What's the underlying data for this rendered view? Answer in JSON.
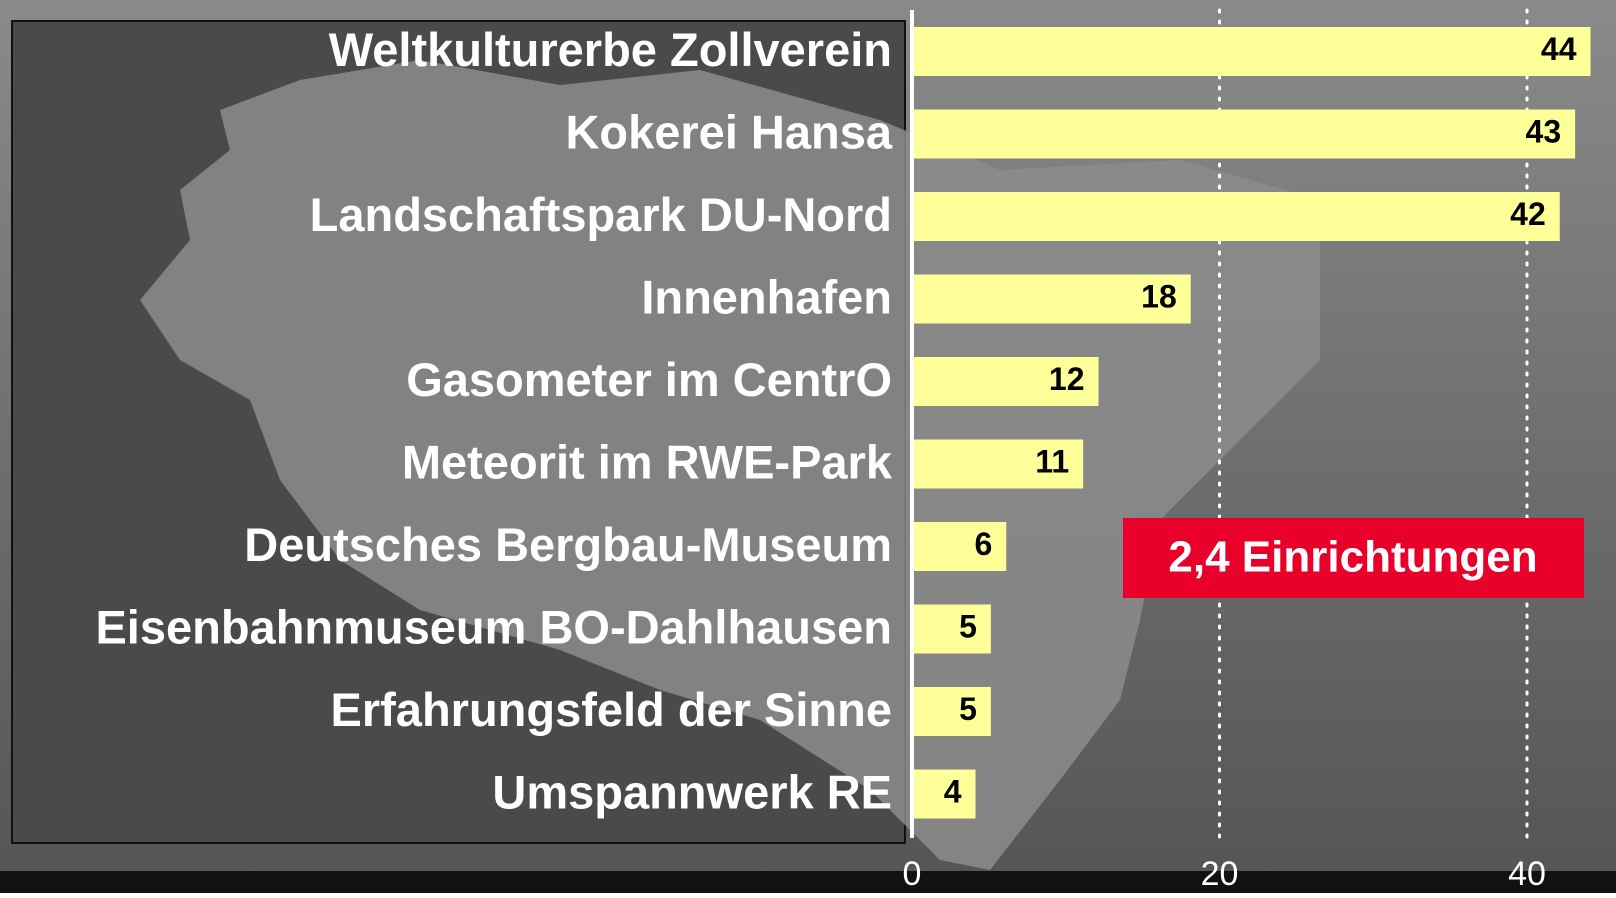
{
  "chart_data": {
    "type": "bar",
    "orientation": "horizontal",
    "categories": [
      "Weltkulturerbe Zollverein",
      "Kokerei Hansa",
      "Landschaftspark DU-Nord",
      "Innenhafen",
      "Gasometer im CentrO",
      "Meteorit im RWE-Park",
      "Deutsches Bergbau-Museum",
      "Eisenbahnmuseum BO-Dahlhausen",
      "Erfahrungsfeld der Sinne",
      "Umspannwerk RE"
    ],
    "values": [
      44,
      43,
      42,
      18,
      12,
      11,
      6,
      5,
      5,
      4
    ],
    "color": "#ffff99",
    "xlim": [
      0,
      46
    ],
    "xticks": [
      0,
      20,
      40
    ],
    "grid": true,
    "annotation": "2,4 Einrichtungen"
  }
}
